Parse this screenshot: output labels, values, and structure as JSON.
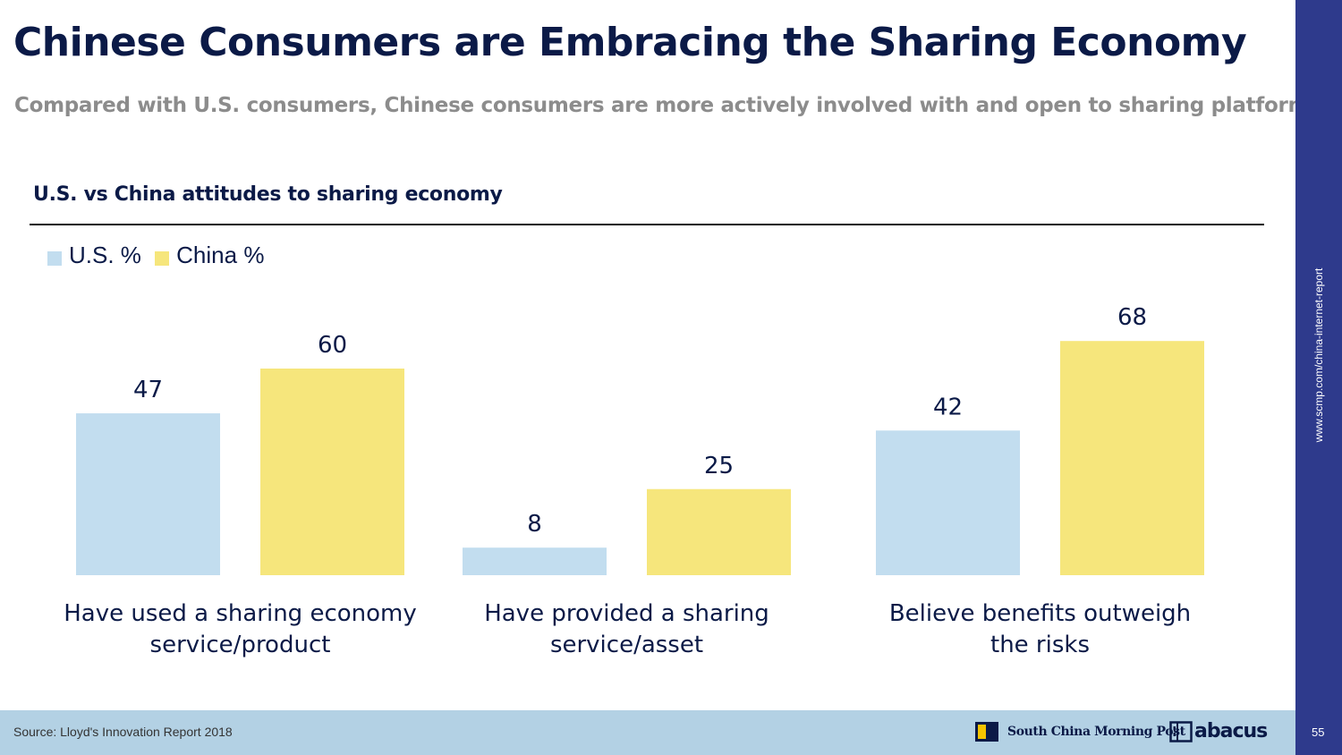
{
  "page": {
    "title": "Chinese Consumers are Embracing the Sharing Economy",
    "subtitle": "Compared with U.S. consumers, Chinese consumers are more actively involved with and open to sharing platforms.",
    "chart_heading": "U.S. vs China attitudes to sharing economy",
    "side_url": "www.scmp.com/china-internet-report",
    "source": "Source: Lloyd's Innovation Report 2018",
    "publisher": "South China Morning Post",
    "brand": "abacus",
    "page_number": "55"
  },
  "colors": {
    "us": "#c2ddef",
    "china": "#f6e67c",
    "accent": "#2e3a8c"
  },
  "legend": [
    {
      "label": "U.S. %",
      "color": "#c2ddef"
    },
    {
      "label": "China %",
      "color": "#f6e67c"
    }
  ],
  "chart_data": {
    "type": "bar",
    "title": "U.S. vs China attitudes to sharing economy",
    "categories": [
      [
        "Have used a sharing economy",
        "service/product"
      ],
      [
        "Have provided a sharing",
        "service/asset"
      ],
      [
        "Believe benefits outweigh",
        "the risks"
      ]
    ],
    "series": [
      {
        "name": "U.S. %",
        "values": [
          47,
          8,
          42
        ]
      },
      {
        "name": "China %",
        "values": [
          60,
          25,
          68
        ]
      }
    ],
    "ylim": [
      0,
      68
    ],
    "xlabel": "",
    "ylabel": "",
    "grid": false,
    "legend_position": "top-left"
  }
}
